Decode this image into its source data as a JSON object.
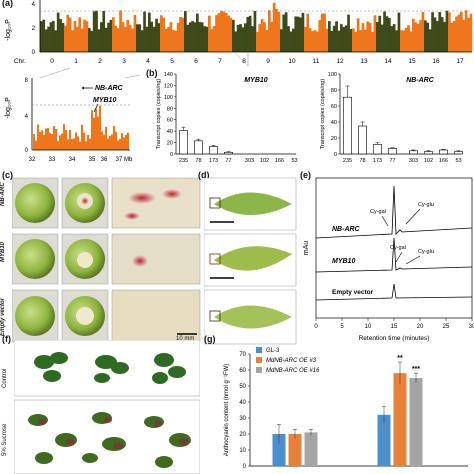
{
  "panel_a": {
    "letter": "(a)",
    "ylabel": "-log₁₀P",
    "chr_label": "Chr.",
    "chromosomes": [
      "0",
      "1",
      "2",
      "3",
      "4",
      "5",
      "6",
      "7",
      "8",
      "9",
      "10",
      "11",
      "12",
      "13",
      "14",
      "15",
      "16",
      "17"
    ],
    "yticks": [
      "4",
      "2",
      "0"
    ],
    "zoom": {
      "ylabel": "-log₁₀P",
      "yticks": [
        "8",
        "4",
        "0"
      ],
      "xticks": [
        "32",
        "33",
        "34",
        "35",
        "36",
        "37 Mb"
      ],
      "annotation_1": "NB-ARC",
      "annotation_2": "MYB10"
    },
    "colors": {
      "dark": "#3f4a1a",
      "orange": "#f0761c"
    }
  },
  "panel_b": {
    "letter": "(b)",
    "chart_data": [
      {
        "type": "bar",
        "title": "MYB10",
        "ylabel": "Transcript copies (copies/ng)",
        "ylim": [
          0,
          140
        ],
        "yticks": [
          "0",
          "20",
          "40",
          "60",
          "80",
          "100",
          "120",
          "140"
        ],
        "categories": [
          "235",
          "78",
          "173",
          "77",
          "303",
          "102",
          "166",
          "53"
        ],
        "values": [
          41,
          23,
          13,
          3,
          0,
          0,
          0,
          0
        ],
        "errors": [
          6,
          3,
          2,
          1,
          0,
          0,
          0,
          0
        ]
      },
      {
        "type": "bar",
        "title": "NB-ARC",
        "ylabel": "Transcript copies (copies/ng)",
        "ylim": [
          0,
          100
        ],
        "yticks": [
          "0",
          "20",
          "40",
          "60",
          "80",
          "100"
        ],
        "categories": [
          "235",
          "78",
          "173",
          "77",
          "303",
          "102",
          "166",
          "53"
        ],
        "values": [
          71,
          35,
          12,
          7,
          4,
          3,
          5,
          3
        ],
        "errors": [
          14,
          5,
          2,
          1,
          1,
          1,
          1,
          1
        ]
      }
    ]
  },
  "panel_c": {
    "letter": "(c)",
    "row_labels": [
      "NB-ARC",
      "MYB10",
      "Empty vector"
    ],
    "scale_label": "10 mm"
  },
  "panel_d": {
    "letter": "(d)"
  },
  "panel_e": {
    "letter": "(e)",
    "ylabel": "mAu",
    "xlabel": "Retention time (minutes)",
    "xticks": [
      "0",
      "5",
      "10",
      "15",
      "20",
      "25",
      "30"
    ],
    "traces": [
      "NB-ARC",
      "MYB10",
      "Empty vector"
    ],
    "peaks": {
      "p1": "Cy-gal",
      "p2": "Cy-glu"
    }
  },
  "panel_f": {
    "letter": "(f)",
    "row_labels": [
      "Control",
      "5% Sucrose"
    ]
  },
  "panel_g": {
    "letter": "(g)",
    "chart_data": {
      "type": "bar",
      "ylabel": "Anthocyanin content (nmol g⁻¹FW)",
      "ylim": [
        0,
        70
      ],
      "yticks": [
        "0",
        "10",
        "20",
        "30",
        "40",
        "50",
        "60",
        "70"
      ],
      "groups": 2,
      "series": [
        {
          "name": "GL-3",
          "color": "#4d8fcc",
          "values": [
            20,
            32
          ],
          "errors": [
            6,
            5
          ]
        },
        {
          "name": "MdNB-ARC OE #3",
          "color": "#e8823a",
          "values": [
            20,
            58
          ],
          "errors": [
            3,
            7
          ]
        },
        {
          "name": "MdNB-ARC OE #16",
          "color": "#a5a5a5",
          "values": [
            21,
            55
          ],
          "errors": [
            2,
            3
          ]
        }
      ],
      "significance": [
        "**",
        "***"
      ]
    }
  }
}
